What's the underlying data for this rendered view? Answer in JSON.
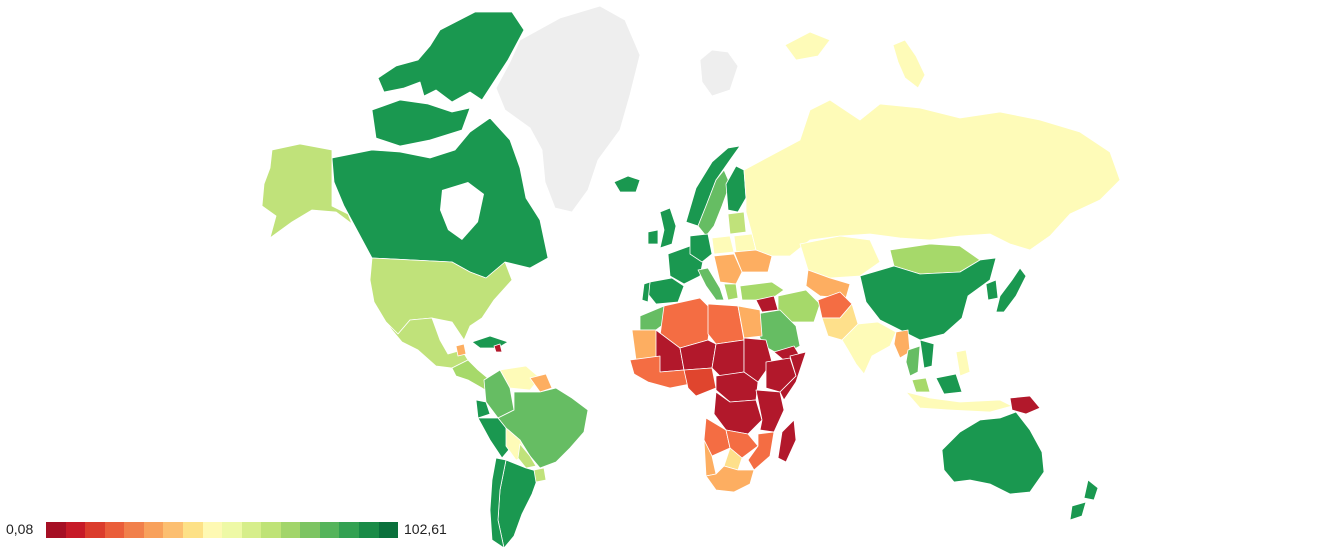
{
  "legend": {
    "min_label": "0,08",
    "max_label": "102,61",
    "min_value": 0.08,
    "max_value": 102.61,
    "scale_colors": [
      "#a50f24",
      "#c61a27",
      "#db3c2c",
      "#ea5e3a",
      "#f1804b",
      "#f8a15c",
      "#fcbf71",
      "#fde187",
      "#fef9b3",
      "#eef9a6",
      "#d6ee8b",
      "#bfe377",
      "#a2d56a",
      "#7cc462",
      "#55b45b",
      "#33a152",
      "#1a8b47",
      "#0a703c"
    ]
  },
  "colors": {
    "no_data": "#eeeeee",
    "dark_green": "#1a9850",
    "green": "#66bd63",
    "light_green": "#a6d96a",
    "lime": "#c0e27a",
    "pale_yellow": "#fefbb8",
    "light_yellow": "#fee08b",
    "orange": "#fdae61",
    "dark_orange": "#f46d43",
    "red": "#e0452e",
    "dark_red": "#b2182b"
  }
}
